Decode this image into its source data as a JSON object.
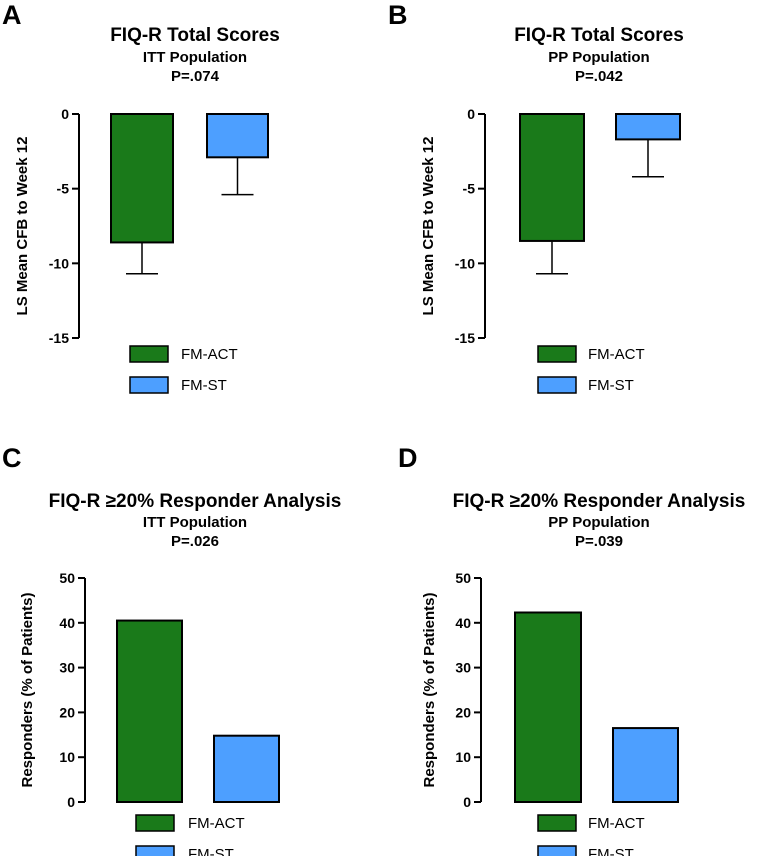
{
  "colors": {
    "act": "#1a7a1a",
    "st": "#4d9fff",
    "axis": "#000000"
  },
  "chart_data": [
    {
      "panel": "A",
      "type": "bar",
      "title": "FIQ-R Total Scores",
      "subtitle": "ITT Population",
      "pvalue": "P=.074",
      "ylabel": "LS Mean CFB to Week 12",
      "ylim": [
        -15,
        0
      ],
      "yticks": [
        0,
        -5,
        -10,
        -15
      ],
      "categories": [
        "FM-ACT",
        "FM-ST"
      ],
      "values": [
        -8.6,
        -2.9
      ],
      "errors": [
        2.1,
        2.5
      ],
      "legend": [
        "FM-ACT",
        "FM-ST"
      ],
      "legend_position": "bottom"
    },
    {
      "panel": "B",
      "type": "bar",
      "title": "FIQ-R Total Scores",
      "subtitle": "PP Population",
      "pvalue": "P=.042",
      "ylabel": "LS Mean CFB to Week 12",
      "ylim": [
        -15,
        0
      ],
      "yticks": [
        0,
        -5,
        -10,
        -15
      ],
      "categories": [
        "FM-ACT",
        "FM-ST"
      ],
      "values": [
        -8.5,
        -1.7
      ],
      "errors": [
        2.2,
        2.5
      ],
      "legend": [
        "FM-ACT",
        "FM-ST"
      ],
      "legend_position": "bottom"
    },
    {
      "panel": "C",
      "type": "bar",
      "title": "FIQ-R ≥20% Responder Analysis",
      "subtitle": "ITT Population",
      "pvalue": "P=.026",
      "ylabel": "Responders (% of Patients)",
      "ylim": [
        0,
        50
      ],
      "yticks": [
        50,
        40,
        30,
        20,
        10,
        0
      ],
      "categories": [
        "FM-ACT",
        "FM-ST"
      ],
      "values": [
        40.5,
        14.8
      ],
      "errors": [
        0,
        0
      ],
      "legend": [
        "FM-ACT",
        "FM-ST"
      ],
      "legend_position": "bottom"
    },
    {
      "panel": "D",
      "type": "bar",
      "title": "FIQ-R ≥20% Responder Analysis",
      "subtitle": "PP Population",
      "pvalue": "P=.039",
      "ylabel": "Responders (% of Patients)",
      "ylim": [
        0,
        50
      ],
      "yticks": [
        50,
        40,
        30,
        20,
        10,
        0
      ],
      "categories": [
        "FM-ACT",
        "FM-ST"
      ],
      "values": [
        42.3,
        16.5
      ],
      "errors": [
        0,
        0
      ],
      "legend": [
        "FM-ACT",
        "FM-ST"
      ],
      "legend_position": "bottom"
    }
  ]
}
